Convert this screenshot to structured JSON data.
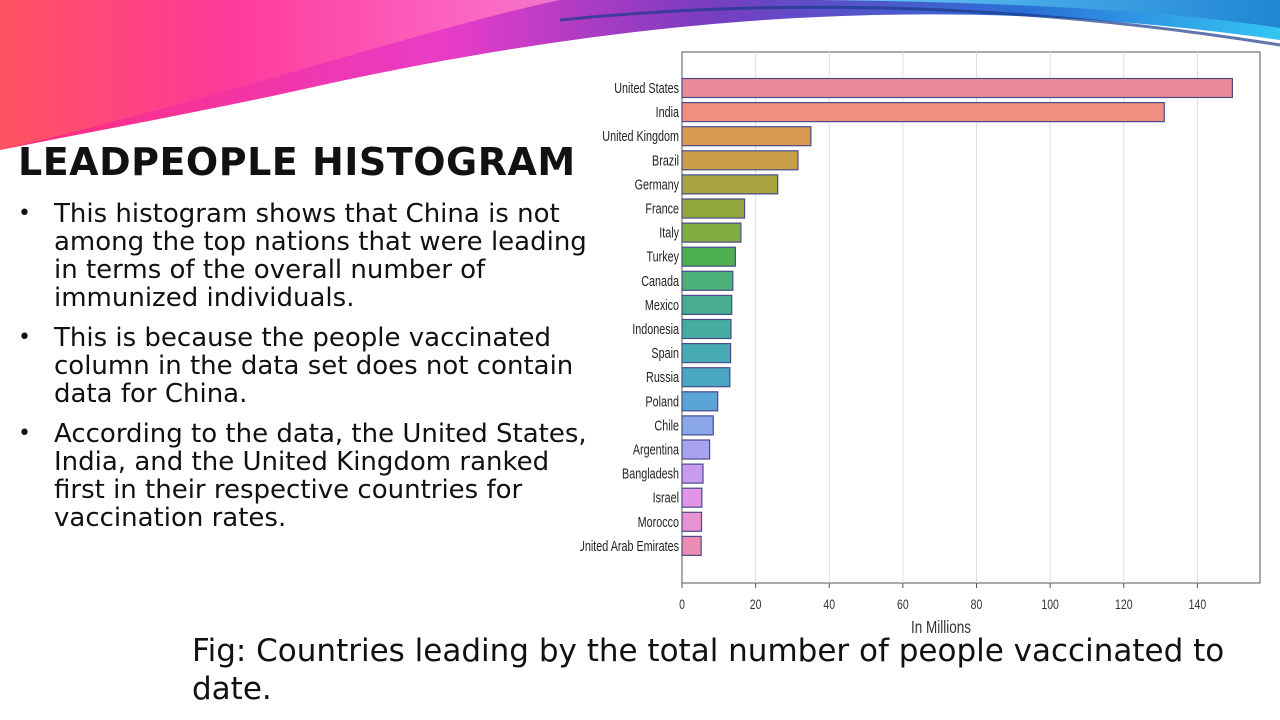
{
  "slide": {
    "title": "LEADPEOPLE HISTOGRAM",
    "bullets": [
      "This histogram shows that China is not among the top nations that were leading in terms of the overall number of immunized individuals.",
      "This is because the people vaccinated column in the data set does not contain data for China.",
      " According to the data, the United States, India, and the United Kingdom ranked first in their respective countries for vaccination rates."
    ],
    "caption": "Fig: Countries leading by the total number of people vaccinated to date."
  },
  "chart_data": {
    "type": "bar",
    "orientation": "horizontal",
    "title": "",
    "xlabel": "In Millions",
    "ylabel": "",
    "xlim": [
      0,
      157
    ],
    "x_ticks": [
      0,
      20,
      40,
      60,
      80,
      100,
      120,
      140
    ],
    "grid": true,
    "categories": [
      "United States",
      "India",
      "United Kingdom",
      "Brazil",
      "Germany",
      "France",
      "Italy",
      "Turkey",
      "Canada",
      "Mexico",
      "Indonesia",
      "Spain",
      "Russia",
      "Poland",
      "Chile",
      "Argentina",
      "Bangladesh",
      "Israel",
      "Morocco",
      "United Arab Emirates"
    ],
    "values": [
      149.5,
      131,
      35,
      31.5,
      26,
      17,
      16,
      14.5,
      13.8,
      13.5,
      13.3,
      13.2,
      13,
      9.7,
      8.5,
      7.5,
      5.7,
      5.4,
      5.3,
      5.2
    ],
    "colors": [
      "#ea8a9a",
      "#ef8f80",
      "#d9994f",
      "#c9a048",
      "#a8a23f",
      "#93a73f",
      "#82ab42",
      "#4cb14e",
      "#4bb07a",
      "#48ad90",
      "#47aca0",
      "#48aab3",
      "#4aa7c3",
      "#5aa4d8",
      "#8aa8e8",
      "#a9a3ef",
      "#c79bee",
      "#e095e6",
      "#e893d1",
      "#eb8db2"
    ]
  }
}
